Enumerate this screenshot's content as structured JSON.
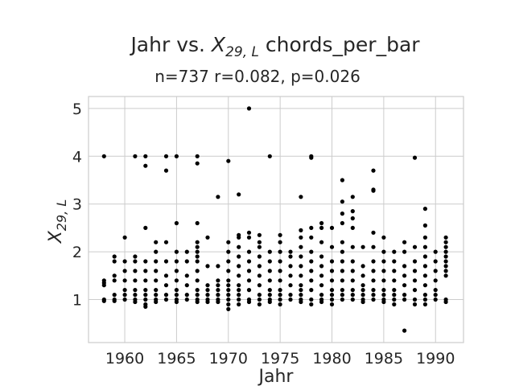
{
  "chart_data": {
    "type": "scatter",
    "title_parts": {
      "prefix": "Jahr vs. ",
      "var_main": "X",
      "var_sub": "29, L",
      "suffix": " chords_per_bar"
    },
    "subtitle": "n=737 r=0.082, p=0.026",
    "xlabel": "Jahr",
    "ylabel_parts": {
      "main": "X",
      "sub": "29, L"
    },
    "xlim": [
      1956.5,
      1992.7
    ],
    "ylim": [
      0.1,
      5.25
    ],
    "xticks": [
      1960,
      1965,
      1970,
      1975,
      1980,
      1985,
      1990
    ],
    "yticks": [
      1,
      2,
      3,
      4,
      5
    ],
    "grid": true,
    "series": [
      {
        "points": [
          [
            1958,
            4.0
          ],
          [
            1958,
            1.4
          ],
          [
            1958,
            1.3
          ],
          [
            1958,
            1.0
          ],
          [
            1958,
            0.97
          ],
          [
            1958,
            1.35
          ],
          [
            1959,
            1.9
          ],
          [
            1959,
            1.8
          ],
          [
            1959,
            1.5
          ],
          [
            1959,
            1.4
          ],
          [
            1959,
            1.1
          ],
          [
            1959,
            1.0
          ],
          [
            1959,
            0.97
          ],
          [
            1960,
            2.3
          ],
          [
            1960,
            1.8
          ],
          [
            1960,
            1.6
          ],
          [
            1960,
            1.4
          ],
          [
            1960,
            1.2
          ],
          [
            1960,
            1.1
          ],
          [
            1960,
            1.0
          ],
          [
            1961,
            4.0
          ],
          [
            1961,
            1.9
          ],
          [
            1961,
            1.8
          ],
          [
            1961,
            1.6
          ],
          [
            1961,
            1.4
          ],
          [
            1961,
            1.2
          ],
          [
            1961,
            1.1
          ],
          [
            1961,
            1.0
          ],
          [
            1961,
            0.95
          ],
          [
            1962,
            4.0
          ],
          [
            1962,
            3.8
          ],
          [
            1962,
            2.5
          ],
          [
            1962,
            1.8
          ],
          [
            1962,
            1.6
          ],
          [
            1962,
            1.4
          ],
          [
            1962,
            1.2
          ],
          [
            1962,
            1.1
          ],
          [
            1962,
            1.0
          ],
          [
            1962,
            0.9
          ],
          [
            1962,
            0.85
          ],
          [
            1963,
            2.2
          ],
          [
            1963,
            2.0
          ],
          [
            1963,
            1.8
          ],
          [
            1963,
            1.6
          ],
          [
            1963,
            1.4
          ],
          [
            1963,
            1.2
          ],
          [
            1963,
            1.1
          ],
          [
            1963,
            1.0
          ],
          [
            1963,
            0.95
          ],
          [
            1964,
            4.0
          ],
          [
            1964,
            3.7
          ],
          [
            1964,
            2.2
          ],
          [
            1964,
            1.8
          ],
          [
            1964,
            1.5
          ],
          [
            1964,
            1.3
          ],
          [
            1964,
            1.1
          ],
          [
            1964,
            1.0
          ],
          [
            1965,
            4.0
          ],
          [
            1965,
            2.6
          ],
          [
            1965,
            2.0
          ],
          [
            1965,
            1.8
          ],
          [
            1965,
            1.6
          ],
          [
            1965,
            1.4
          ],
          [
            1965,
            1.2
          ],
          [
            1965,
            1.1
          ],
          [
            1965,
            1.0
          ],
          [
            1965,
            0.95
          ],
          [
            1966,
            2.0
          ],
          [
            1966,
            1.8
          ],
          [
            1966,
            1.5
          ],
          [
            1966,
            1.3
          ],
          [
            1966,
            1.1
          ],
          [
            1966,
            1.0
          ],
          [
            1967,
            4.0
          ],
          [
            1967,
            3.85
          ],
          [
            1967,
            2.6
          ],
          [
            1967,
            2.2
          ],
          [
            1967,
            2.1
          ],
          [
            1967,
            2.0
          ],
          [
            1967,
            1.9
          ],
          [
            1967,
            1.8
          ],
          [
            1967,
            1.6
          ],
          [
            1967,
            1.4
          ],
          [
            1967,
            1.2
          ],
          [
            1967,
            1.1
          ],
          [
            1967,
            1.0
          ],
          [
            1967,
            0.95
          ],
          [
            1968,
            2.3
          ],
          [
            1968,
            1.7
          ],
          [
            1968,
            1.3
          ],
          [
            1968,
            1.2
          ],
          [
            1968,
            1.1
          ],
          [
            1968,
            1.0
          ],
          [
            1968,
            0.95
          ],
          [
            1969,
            3.15
          ],
          [
            1969,
            1.7
          ],
          [
            1969,
            1.4
          ],
          [
            1969,
            1.3
          ],
          [
            1969,
            1.2
          ],
          [
            1969,
            1.1
          ],
          [
            1969,
            1.0
          ],
          [
            1969,
            0.95
          ],
          [
            1970,
            3.9
          ],
          [
            1970,
            2.2
          ],
          [
            1970,
            2.0
          ],
          [
            1970,
            1.8
          ],
          [
            1970,
            1.6
          ],
          [
            1970,
            1.4
          ],
          [
            1970,
            1.3
          ],
          [
            1970,
            1.2
          ],
          [
            1970,
            1.1
          ],
          [
            1970,
            1.0
          ],
          [
            1970,
            0.9
          ],
          [
            1970,
            0.8
          ],
          [
            1971,
            3.2
          ],
          [
            1971,
            2.35
          ],
          [
            1971,
            2.3
          ],
          [
            1971,
            2.1
          ],
          [
            1971,
            1.9
          ],
          [
            1971,
            1.7
          ],
          [
            1971,
            1.5
          ],
          [
            1971,
            1.3
          ],
          [
            1971,
            1.2
          ],
          [
            1971,
            1.1
          ],
          [
            1971,
            1.0
          ],
          [
            1971,
            0.9
          ],
          [
            1972,
            5.0
          ],
          [
            1972,
            2.4
          ],
          [
            1972,
            2.3
          ],
          [
            1972,
            2.0
          ],
          [
            1972,
            1.8
          ],
          [
            1972,
            1.6
          ],
          [
            1972,
            1.4
          ],
          [
            1972,
            1.2
          ],
          [
            1972,
            1.0
          ],
          [
            1972,
            0.95
          ],
          [
            1973,
            2.35
          ],
          [
            1973,
            2.2
          ],
          [
            1973,
            2.1
          ],
          [
            1973,
            1.9
          ],
          [
            1973,
            1.7
          ],
          [
            1973,
            1.5
          ],
          [
            1973,
            1.3
          ],
          [
            1973,
            1.1
          ],
          [
            1973,
            1.0
          ],
          [
            1973,
            0.9
          ],
          [
            1974,
            4.0
          ],
          [
            1974,
            2.0
          ],
          [
            1974,
            1.8
          ],
          [
            1974,
            1.6
          ],
          [
            1974,
            1.4
          ],
          [
            1974,
            1.2
          ],
          [
            1974,
            1.1
          ],
          [
            1974,
            1.0
          ],
          [
            1974,
            0.95
          ],
          [
            1975,
            2.35
          ],
          [
            1975,
            2.2
          ],
          [
            1975,
            2.0
          ],
          [
            1975,
            1.8
          ],
          [
            1975,
            1.6
          ],
          [
            1975,
            1.4
          ],
          [
            1975,
            1.2
          ],
          [
            1975,
            1.1
          ],
          [
            1975,
            1.0
          ],
          [
            1975,
            0.9
          ],
          [
            1976,
            2.0
          ],
          [
            1976,
            1.9
          ],
          [
            1976,
            1.7
          ],
          [
            1976,
            1.5
          ],
          [
            1976,
            1.3
          ],
          [
            1976,
            1.1
          ],
          [
            1976,
            1.0
          ],
          [
            1977,
            3.15
          ],
          [
            1977,
            2.45
          ],
          [
            1977,
            2.3
          ],
          [
            1977,
            2.1
          ],
          [
            1977,
            1.9
          ],
          [
            1977,
            1.7
          ],
          [
            1977,
            1.5
          ],
          [
            1977,
            1.3
          ],
          [
            1977,
            1.2
          ],
          [
            1977,
            1.1
          ],
          [
            1977,
            1.0
          ],
          [
            1977,
            0.95
          ],
          [
            1978,
            4.0
          ],
          [
            1978,
            3.97
          ],
          [
            1978,
            2.5
          ],
          [
            1978,
            2.3
          ],
          [
            1978,
            2.0
          ],
          [
            1978,
            1.8
          ],
          [
            1978,
            1.6
          ],
          [
            1978,
            1.4
          ],
          [
            1978,
            1.2
          ],
          [
            1978,
            1.0
          ],
          [
            1978,
            0.9
          ],
          [
            1979,
            2.6
          ],
          [
            1979,
            2.5
          ],
          [
            1979,
            2.2
          ],
          [
            1979,
            1.9
          ],
          [
            1979,
            1.7
          ],
          [
            1979,
            1.5
          ],
          [
            1979,
            1.3
          ],
          [
            1979,
            1.1
          ],
          [
            1979,
            1.0
          ],
          [
            1979,
            0.95
          ],
          [
            1980,
            2.5
          ],
          [
            1980,
            2.1
          ],
          [
            1980,
            1.8
          ],
          [
            1980,
            1.6
          ],
          [
            1980,
            1.4
          ],
          [
            1980,
            1.2
          ],
          [
            1980,
            1.1
          ],
          [
            1980,
            1.0
          ],
          [
            1980,
            0.9
          ],
          [
            1981,
            3.5
          ],
          [
            1981,
            3.05
          ],
          [
            1981,
            2.8
          ],
          [
            1981,
            2.6
          ],
          [
            1981,
            2.2
          ],
          [
            1981,
            2.0
          ],
          [
            1981,
            1.8
          ],
          [
            1981,
            1.6
          ],
          [
            1981,
            1.4
          ],
          [
            1981,
            1.2
          ],
          [
            1981,
            1.1
          ],
          [
            1981,
            1.0
          ],
          [
            1982,
            3.15
          ],
          [
            1982,
            2.85
          ],
          [
            1982,
            2.7
          ],
          [
            1982,
            2.5
          ],
          [
            1982,
            2.1
          ],
          [
            1982,
            1.8
          ],
          [
            1982,
            1.6
          ],
          [
            1982,
            1.4
          ],
          [
            1982,
            1.2
          ],
          [
            1982,
            1.1
          ],
          [
            1982,
            1.0
          ],
          [
            1983,
            2.1
          ],
          [
            1983,
            1.7
          ],
          [
            1983,
            1.5
          ],
          [
            1983,
            1.3
          ],
          [
            1983,
            1.2
          ],
          [
            1983,
            1.1
          ],
          [
            1983,
            1.0
          ],
          [
            1983,
            0.95
          ],
          [
            1984,
            3.7
          ],
          [
            1984,
            3.3
          ],
          [
            1984,
            3.28
          ],
          [
            1984,
            2.4
          ],
          [
            1984,
            2.1
          ],
          [
            1984,
            1.8
          ],
          [
            1984,
            1.6
          ],
          [
            1984,
            1.4
          ],
          [
            1984,
            1.2
          ],
          [
            1984,
            1.1
          ],
          [
            1984,
            1.0
          ],
          [
            1985,
            2.3
          ],
          [
            1985,
            2.0
          ],
          [
            1985,
            1.8
          ],
          [
            1985,
            1.6
          ],
          [
            1985,
            1.4
          ],
          [
            1985,
            1.2
          ],
          [
            1985,
            1.1
          ],
          [
            1985,
            1.0
          ],
          [
            1985,
            0.95
          ],
          [
            1986,
            2.0
          ],
          [
            1986,
            1.8
          ],
          [
            1986,
            1.6
          ],
          [
            1986,
            1.4
          ],
          [
            1986,
            1.2
          ],
          [
            1986,
            1.1
          ],
          [
            1986,
            1.0
          ],
          [
            1986,
            0.9
          ],
          [
            1987,
            2.2
          ],
          [
            1987,
            2.0
          ],
          [
            1987,
            1.7
          ],
          [
            1987,
            1.5
          ],
          [
            1987,
            1.3
          ],
          [
            1987,
            1.1
          ],
          [
            1987,
            1.0
          ],
          [
            1987,
            0.35
          ],
          [
            1988,
            3.97
          ],
          [
            1988,
            2.1
          ],
          [
            1988,
            1.8
          ],
          [
            1988,
            1.6
          ],
          [
            1988,
            1.4
          ],
          [
            1988,
            1.2
          ],
          [
            1988,
            1.0
          ],
          [
            1988,
            0.9
          ],
          [
            1989,
            2.9
          ],
          [
            1989,
            2.55
          ],
          [
            1989,
            2.3
          ],
          [
            1989,
            2.1
          ],
          [
            1989,
            1.9
          ],
          [
            1989,
            1.7
          ],
          [
            1989,
            1.5
          ],
          [
            1989,
            1.3
          ],
          [
            1989,
            1.1
          ],
          [
            1989,
            1.0
          ],
          [
            1989,
            0.9
          ],
          [
            1990,
            2.0
          ],
          [
            1990,
            1.8
          ],
          [
            1990,
            1.6
          ],
          [
            1990,
            1.4
          ],
          [
            1990,
            1.2
          ],
          [
            1990,
            1.1
          ],
          [
            1990,
            1.0
          ],
          [
            1991,
            2.3
          ],
          [
            1991,
            2.2
          ],
          [
            1991,
            2.1
          ],
          [
            1991,
            2.0
          ],
          [
            1991,
            1.9
          ],
          [
            1991,
            1.8
          ],
          [
            1991,
            1.7
          ],
          [
            1991,
            1.6
          ],
          [
            1991,
            1.5
          ],
          [
            1991,
            1.0
          ],
          [
            1991,
            0.95
          ]
        ]
      }
    ]
  },
  "colors": {
    "point": "#000000",
    "grid": "#cccccc",
    "text": "#262626"
  }
}
